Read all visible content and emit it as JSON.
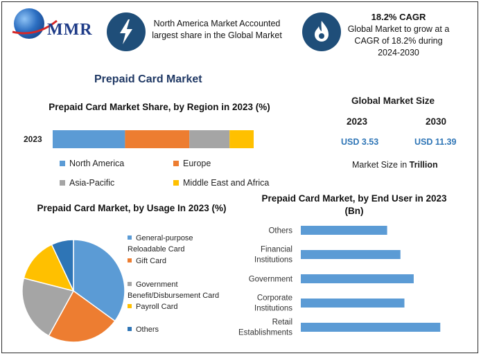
{
  "brand": {
    "logo_text": "MMR"
  },
  "header": {
    "block1_text": "North America Market Accounted largest share in the Global Market",
    "block2_title": "18.2% CAGR",
    "block2_text": "Global Market to grow at a CAGR of 18.2% during 2024-2030"
  },
  "main_title": "Prepaid Card Market",
  "market_size": {
    "title": "Global Market Size",
    "year_a": "2023",
    "year_b": "2030",
    "value_a": "USD 3.53",
    "value_b": "USD 11.39",
    "note_prefix": "Market Size in ",
    "note_unit": "Trillion"
  },
  "colors": {
    "blue": "#5b9bd5",
    "orange": "#ed7d31",
    "gray": "#a5a5a5",
    "yellow": "#ffc000",
    "navy": "#1f4e79",
    "dark_blue": "#2e75b6"
  },
  "chart_data": [
    {
      "type": "bar",
      "orientation": "horizontal-stacked",
      "title": "Prepaid Card Market Share, by Region in 2023 (%)",
      "categories": [
        "2023"
      ],
      "series": [
        {
          "name": "North America",
          "values": [
            36
          ],
          "color": "#5b9bd5"
        },
        {
          "name": "Europe",
          "values": [
            32
          ],
          "color": "#ed7d31"
        },
        {
          "name": "Asia-Pacific",
          "values": [
            20
          ],
          "color": "#a5a5a5"
        },
        {
          "name": "Middle East and Africa",
          "values": [
            12
          ],
          "color": "#ffc000"
        }
      ],
      "legend": "bottom"
    },
    {
      "type": "pie",
      "title": "Prepaid Card Market, by Usage In 2023 (%)",
      "labels": [
        "General-purpose Reloadable Card",
        "Gift Card",
        "Government Benefit/Disbursement Card",
        "Payroll Card",
        "Others"
      ],
      "values": [
        35,
        23,
        21,
        14,
        7
      ],
      "colors": [
        "#5b9bd5",
        "#ed7d31",
        "#a5a5a5",
        "#ffc000",
        "#2e75b6"
      ],
      "legend": "right"
    },
    {
      "type": "bar",
      "orientation": "horizontal",
      "title": "Prepaid Card Market, by End User in 2023 (Bn)",
      "categories": [
        "Others",
        "Financial Institutions",
        "Government",
        "Corporate Institutions",
        "Retail Establishments"
      ],
      "values": [
        0.65,
        0.75,
        0.85,
        0.78,
        1.05
      ],
      "xlim": [
        0,
        1.2
      ],
      "color": "#5b9bd5",
      "grid": false
    }
  ]
}
